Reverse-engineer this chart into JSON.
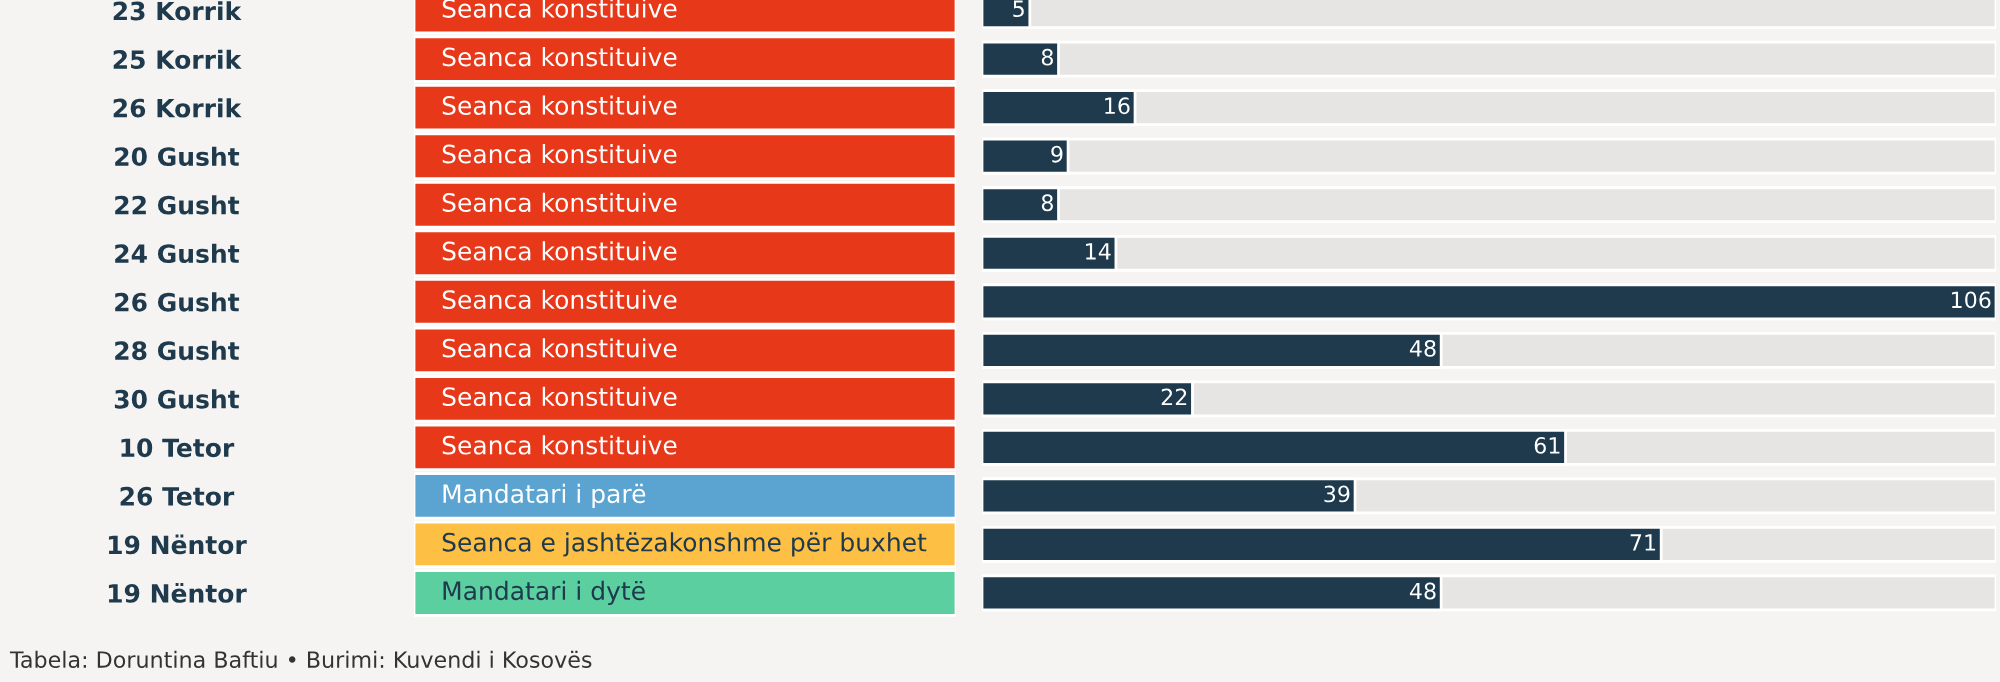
{
  "chart_data": [
    {
      "type": "other",
      "annotations": [
        "Seanca konstituive",
        "Seanca konstituive",
        "Seanca konstituive",
        "Seanca konstituive",
        "Seanca konstituive",
        "Seanca konstituive",
        "Seanca konstituive",
        "Seanca konstituive",
        "Seanca konstituive",
        "Seanca konstituive",
        "Mandatari i parë",
        "Seanca e jashtëzakonshme për buxhet",
        "Mandatari i dytë"
      ],
      "colors": [
        "#e8381a",
        "#e8381a",
        "#e8381a",
        "#e8381a",
        "#e8381a",
        "#e8381a",
        "#e8381a",
        "#e8381a",
        "#e8381a",
        "#e8381a",
        "#5ba4d1",
        "#fec044",
        "#5ccfa0"
      ]
    },
    {
      "type": "bar",
      "orientation": "horizontal",
      "categories": [
        "23 Korrik",
        "25 Korrik",
        "26 Korrik",
        "20 Gusht",
        "22 Gusht",
        "24 Gusht",
        "26 Gusht",
        "28 Gusht",
        "30 Gusht",
        "10 Tetor",
        "26 Tetor",
        "19 Nëntor",
        "19 Nëntor"
      ],
      "values": [
        5,
        8,
        16,
        9,
        8,
        14,
        106,
        48,
        22,
        61,
        39,
        71,
        48
      ],
      "color": "#1e3a4c",
      "xlim": [
        0,
        106
      ],
      "tick_labels": "y",
      "data_labels": true,
      "annotations": [
        "Tabela: Doruntina Baftiu • Burimi: Kuvendi i Kosovës"
      ]
    }
  ]
}
